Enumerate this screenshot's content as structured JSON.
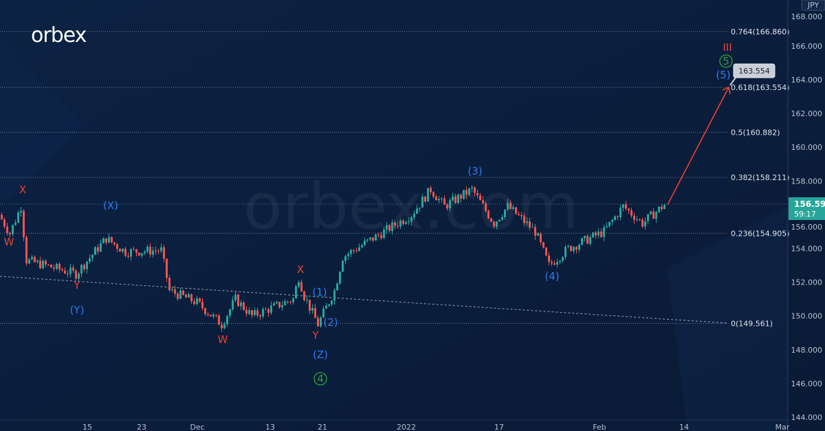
{
  "brand": {
    "logo": "orbex",
    "watermark": "orbex.com"
  },
  "chart_data": {
    "type": "candlestick",
    "currency": "JPY",
    "last_price": "156.598",
    "countdown": "59:17",
    "ylim": [
      144,
      168
    ],
    "y_ticks": [
      "144.000",
      "146.000",
      "148.000",
      "150.000",
      "152.000",
      "154.000",
      "156.000",
      "158.000",
      "160.000",
      "162.000",
      "164.000",
      "166.000",
      "168.000"
    ],
    "x_ticks": [
      "15",
      "23",
      "Dec",
      "13",
      "21",
      "2022",
      "17",
      "Feb",
      "14",
      "Mar"
    ],
    "price_path": [
      [
        0,
        156.0
      ],
      [
        4,
        154.9
      ],
      [
        8,
        156.5
      ],
      [
        10,
        153.3
      ],
      [
        28,
        152.5
      ],
      [
        39,
        154.6
      ],
      [
        46,
        153.8
      ],
      [
        59,
        153.9
      ],
      [
        62,
        151.5
      ],
      [
        72,
        150.8
      ],
      [
        81,
        149.5
      ],
      [
        86,
        151.0
      ],
      [
        92,
        150.0
      ],
      [
        107,
        151.0
      ],
      [
        109,
        152.3
      ],
      [
        111,
        151.2
      ],
      [
        116,
        149.5
      ],
      [
        122,
        151.5
      ],
      [
        125,
        153.5
      ],
      [
        135,
        154.5
      ],
      [
        150,
        156.0
      ],
      [
        157,
        157.5
      ],
      [
        162,
        156.5
      ],
      [
        172,
        157.5
      ],
      [
        180,
        155.5
      ],
      [
        185,
        156.5
      ],
      [
        195,
        155.0
      ],
      [
        200,
        153.0
      ],
      [
        207,
        154.0
      ],
      [
        220,
        155.0
      ],
      [
        227,
        156.5
      ],
      [
        234,
        155.5
      ],
      [
        242,
        156.6
      ]
    ],
    "projection": {
      "from": 156.598,
      "to": 163.554,
      "label": "163.554"
    },
    "fib_levels": [
      {
        "label": "0.764(166.860)",
        "price": 166.86
      },
      {
        "label": "0.618(163.554)",
        "price": 163.554
      },
      {
        "label": "0.5(160.882)",
        "price": 160.882
      },
      {
        "label": "0.382(158.211)",
        "price": 158.211
      },
      {
        "label": "0.236(154.905)",
        "price": 154.905
      },
      {
        "label": "0(149.561)",
        "price": 149.561
      }
    ],
    "wave_labels": {
      "red": [
        "X",
        "W",
        "Y",
        "X",
        "Y",
        "W",
        "III"
      ],
      "blue": [
        "(X)",
        "(Y)",
        "(1)",
        "(2)",
        "(Z)",
        "(3)",
        "(4)",
        "(5)"
      ],
      "green": [
        "4",
        "5"
      ]
    },
    "colors": {
      "up": "#26a69a",
      "down": "#ef5350",
      "red_label": "#f0402f",
      "blue_label": "#2f7bf0",
      "green_label": "#2ea043",
      "badge": "#26a69a"
    }
  }
}
